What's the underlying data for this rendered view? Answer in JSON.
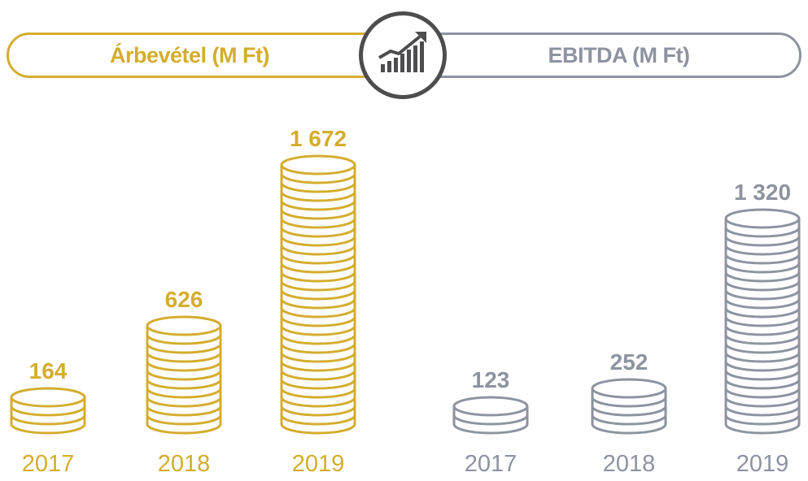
{
  "header": {
    "left_label": "Árbevétel (M Ft)",
    "right_label": "EBITDA (M Ft)",
    "center_icon": "growth-chart-icon"
  },
  "colors": {
    "revenue": "#d4ad2e",
    "ebitda": "#8d93a0",
    "badge": "#4d4d4f"
  },
  "chart_data": [
    {
      "type": "bar",
      "title": "Árbevétel (M Ft)",
      "categories": [
        "2017",
        "2018",
        "2019"
      ],
      "values": [
        164,
        626,
        1672
      ],
      "value_labels": [
        "164",
        "626",
        "1 672"
      ],
      "ylim": [
        0,
        1672
      ]
    },
    {
      "type": "bar",
      "title": "EBITDA (M Ft)",
      "categories": [
        "2017",
        "2018",
        "2019"
      ],
      "values": [
        123,
        252,
        1320
      ],
      "value_labels": [
        "123",
        "252",
        "1 320"
      ],
      "ylim": [
        0,
        1320
      ]
    }
  ]
}
